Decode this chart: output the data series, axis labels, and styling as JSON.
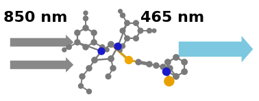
{
  "bg_color": "#ffffff",
  "left_label": "850 nm",
  "right_label": "465 nm",
  "label_fontsize": 16,
  "label_fontweight": "bold",
  "atom_color_gray": "#7a7a7a",
  "atom_color_blue": "#1a1acc",
  "atom_color_gold": "#f0a800",
  "atom_color_yellow": "#e8a000",
  "bond_color": "#7a7a7a",
  "bond_lw": 1.8,
  "gray_arrow_color": "#888888",
  "blue_arrow_color": "#7bc8e0"
}
